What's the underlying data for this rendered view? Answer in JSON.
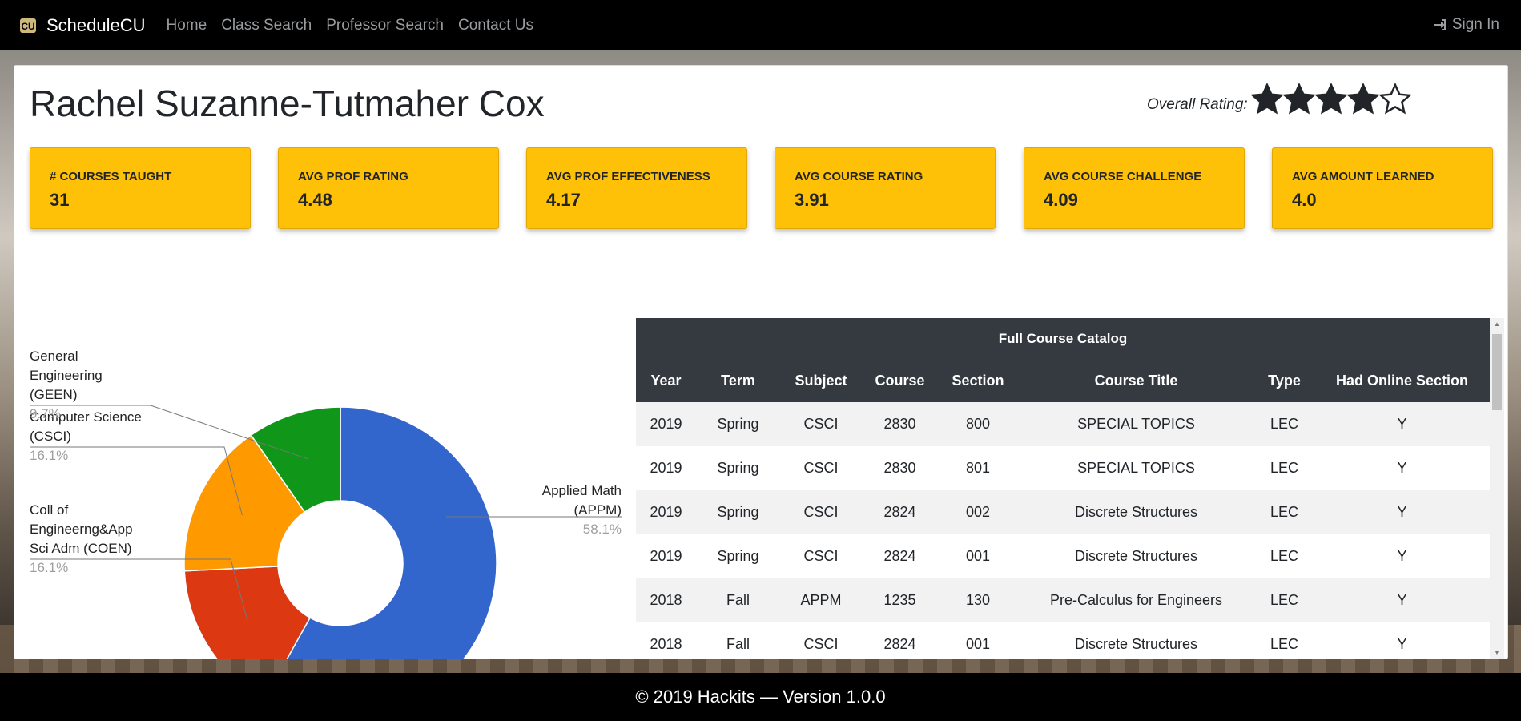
{
  "nav": {
    "brand": "ScheduleCU",
    "links": [
      "Home",
      "Class Search",
      "Professor Search",
      "Contact Us"
    ],
    "signin": "Sign In"
  },
  "professor": {
    "name": "Rachel Suzanne-Tutmaher Cox",
    "rating_label": "Overall Rating:",
    "stars_filled": 4,
    "stars_total": 5
  },
  "stats": [
    {
      "label": "# COURSES TAUGHT",
      "value": "31"
    },
    {
      "label": "AVG PROF RATING",
      "value": "4.48"
    },
    {
      "label": "AVG PROF EFFECTIVENESS",
      "value": "4.17"
    },
    {
      "label": "AVG COURSE RATING",
      "value": "3.91"
    },
    {
      "label": "AVG COURSE CHALLENGE",
      "value": "4.09"
    },
    {
      "label": "AVG AMOUNT LEARNED",
      "value": "4.0"
    }
  ],
  "chart_data": {
    "type": "pie",
    "donut": true,
    "slices": [
      {
        "label": "Applied Math (APPM)",
        "value": 58.1,
        "pct": "58.1%",
        "color": "#3366cc"
      },
      {
        "label": "Coll of Engineerng&App Sci Adm (COEN)",
        "value": 16.1,
        "pct": "16.1%",
        "color": "#dc3912"
      },
      {
        "label": "Computer Science (CSCI)",
        "value": 16.1,
        "pct": "16.1%",
        "color": "#ff9900"
      },
      {
        "label": "General Engineering (GEEN)",
        "value": 9.7,
        "pct": "9.7%",
        "color": "#109618"
      }
    ]
  },
  "table": {
    "caption": "Full Course Catalog",
    "headers": [
      "Year",
      "Term",
      "Subject",
      "Course",
      "Section",
      "Course Title",
      "Type",
      "Had Online Section"
    ],
    "rows": [
      [
        "2019",
        "Spring",
        "CSCI",
        "2830",
        "800",
        "SPECIAL TOPICS",
        "LEC",
        "Y"
      ],
      [
        "2019",
        "Spring",
        "CSCI",
        "2830",
        "801",
        "SPECIAL TOPICS",
        "LEC",
        "Y"
      ],
      [
        "2019",
        "Spring",
        "CSCI",
        "2824",
        "002",
        "Discrete Structures",
        "LEC",
        "Y"
      ],
      [
        "2019",
        "Spring",
        "CSCI",
        "2824",
        "001",
        "Discrete Structures",
        "LEC",
        "Y"
      ],
      [
        "2018",
        "Fall",
        "APPM",
        "1235",
        "130",
        "Pre-Calculus for Engineers",
        "LEC",
        "Y"
      ],
      [
        "2018",
        "Fall",
        "CSCI",
        "2824",
        "001",
        "Discrete Structures",
        "LEC",
        "Y"
      ]
    ]
  },
  "footer": "© 2019 Hackits — Version 1.0.0",
  "colors": {
    "accent": "#ffc107",
    "dark": "#343a40"
  }
}
